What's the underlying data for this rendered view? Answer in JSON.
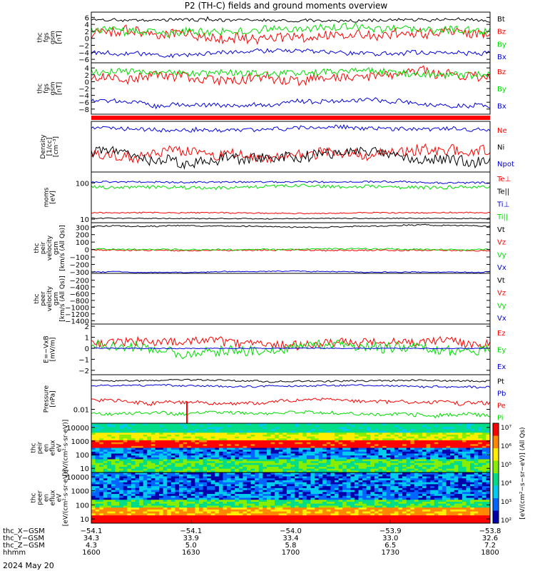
{
  "title": "P2 (TH-C) fields and ground moments overview",
  "date_label": "2024 May 20",
  "colors": {
    "black": "#000000",
    "red": "#ff0000",
    "green": "#00dd00",
    "blue": "#0000dd"
  },
  "chart_data": [
    {
      "type": "line",
      "ylabel_lines": [
        "thc",
        "fgs",
        "gsm",
        "[nT]"
      ],
      "ylim": [
        -7,
        7.5
      ],
      "yticks": [
        "6",
        "4",
        "2",
        "0",
        "−2",
        "−4",
        "−6"
      ],
      "ytick_values": [
        6,
        4,
        2,
        0,
        -2,
        -4,
        -6
      ],
      "series": [
        {
          "name": "Bt",
          "color": "#000000",
          "base": 5.2,
          "noise": 0.4,
          "drift": 0.6,
          "spike": 0.9
        },
        {
          "name": "Bz",
          "color": "#ff0000",
          "base": 0.5,
          "noise": 1.4,
          "drift": 1.6
        },
        {
          "name": "By",
          "color": "#00dd00",
          "base": 2.5,
          "noise": 1.1,
          "drift": 0.8
        },
        {
          "name": "Bx",
          "color": "#0000dd",
          "base": -4.2,
          "noise": 0.6,
          "drift": 1.0
        }
      ]
    },
    {
      "type": "line",
      "ylabel_lines": [
        "thc",
        "fgs",
        "gsm",
        "[nT]"
      ],
      "ylim": [
        -9.5,
        5.5
      ],
      "yticks": [
        "4",
        "2",
        "0",
        "−2",
        "−4",
        "−6",
        "−8"
      ],
      "ytick_values": [
        4,
        2,
        0,
        -2,
        -4,
        -6,
        -8
      ],
      "series": [
        {
          "name": "Bz",
          "color": "#ff0000",
          "base": 0.8,
          "noise": 1.4,
          "drift": 1.6
        },
        {
          "name": "By",
          "color": "#00dd00",
          "base": 2.5,
          "noise": 1.0,
          "drift": 0.7
        },
        {
          "name": "Bx",
          "color": "#0000dd",
          "base": -6.2,
          "noise": 0.6,
          "drift": 1.2
        }
      ]
    },
    {
      "type": "line",
      "ylabel_lines": [
        "Density",
        "[1/cc]",
        "[cm⁻³]"
      ],
      "ylim": [
        0,
        1
      ],
      "yticks": [],
      "ytick_values": [],
      "series": [
        {
          "name": "Ne",
          "color": "#ff0000",
          "base": 0.35,
          "noise": 0.1,
          "drift": 0.15
        },
        {
          "name": "Ni",
          "color": "#000000",
          "base": 0.3,
          "noise": 0.1,
          "drift": 0.15
        },
        {
          "name": "Npot",
          "color": "#0000dd",
          "base": 0.85,
          "noise": 0.04,
          "drift": 0.05
        }
      ]
    },
    {
      "type": "line",
      "ylabel_lines": [
        "moms",
        "[eV]"
      ],
      "ylim": [
        8,
        200
      ],
      "log": true,
      "yticks": [
        "100",
        "10"
      ],
      "ytick_values": [
        100,
        10
      ],
      "series": [
        {
          "name": "Te⊥",
          "color": "#ff0000",
          "base": 15,
          "noise": 0.6,
          "drift": 0.4
        },
        {
          "name": "Te||",
          "color": "#000000",
          "base": 10.5,
          "noise": 0.3,
          "drift": 0.2
        },
        {
          "name": "Ti⊥",
          "color": "#0000dd",
          "base": 105,
          "noise": 6,
          "drift": 4
        },
        {
          "name": "Ti||",
          "color": "#00dd00",
          "base": 78,
          "noise": 8,
          "drift": 6
        }
      ]
    },
    {
      "type": "line",
      "ylabel_lines": [
        "thc",
        "peir",
        "velocity",
        "gsm",
        "[km/s (All Qs)]"
      ],
      "ylim": [
        -320,
        360
      ],
      "yticks": [
        "300",
        "200",
        "100",
        "0",
        "−100",
        "−200",
        "−300"
      ],
      "ytick_values": [
        300,
        200,
        100,
        0,
        -100,
        -200,
        -300
      ],
      "series": [
        {
          "name": "Vt",
          "color": "#000000",
          "base": 310,
          "noise": 8,
          "drift": 15
        },
        {
          "name": "Vz",
          "color": "#ff0000",
          "base": -10,
          "noise": 10,
          "drift": 10
        },
        {
          "name": "Vy",
          "color": "#00dd00",
          "base": 0,
          "noise": 10,
          "drift": 10
        },
        {
          "name": "Vx",
          "color": "#0000dd",
          "base": -300,
          "noise": 6,
          "drift": 12
        }
      ]
    },
    {
      "type": "line",
      "ylabel_lines": [
        "thc",
        "peer",
        "velocity",
        "gsm",
        "[km/s (All Qs)]"
      ],
      "ylim": [
        -1500,
        0
      ],
      "yticks": [
        "−200",
        "−400",
        "−600",
        "−800",
        "−1000",
        "−1200",
        "−1400"
      ],
      "ytick_values": [
        -200,
        -400,
        -600,
        -800,
        -1000,
        -1200,
        -1400
      ],
      "series": [
        {
          "name": "Vt",
          "color": "#000000"
        },
        {
          "name": "Vz",
          "color": "#ff0000"
        },
        {
          "name": "Vy",
          "color": "#00dd00"
        },
        {
          "name": "Vx",
          "color": "#0000dd"
        }
      ]
    },
    {
      "type": "line",
      "ylabel_lines": [
        "E=−VxB",
        "[mV/m]"
      ],
      "ylim": [
        -2.4,
        2.2
      ],
      "yticks": [
        "2",
        "1",
        "0",
        "−1",
        "−2"
      ],
      "ytick_values": [
        2,
        1,
        0,
        -1,
        -2
      ],
      "series": [
        {
          "name": "Ez",
          "color": "#ff0000",
          "base": 0.4,
          "noise": 0.4,
          "drift": 0.4
        },
        {
          "name": "Ey",
          "color": "#00dd00",
          "base": 0,
          "noise": 0.45,
          "drift": 0.6
        },
        {
          "name": "Ex",
          "color": "#0000dd",
          "base": 0,
          "noise": 0.04,
          "drift": 0.02
        }
      ]
    },
    {
      "type": "line",
      "ylabel_lines": [
        "Pressure",
        "[nPa]"
      ],
      "ylim": [
        0.003,
        0.2
      ],
      "log": true,
      "yticks": [
        "0.01"
      ],
      "ytick_values": [
        0.01
      ],
      "series": [
        {
          "name": "Pt",
          "color": "#000000",
          "base": 0.12,
          "noise": 0.008,
          "drift": 0.01
        },
        {
          "name": "Pb",
          "color": "#0000dd",
          "base": 0.075,
          "noise": 0.006,
          "drift": 0.008
        },
        {
          "name": "Pe",
          "color": "#ff0000",
          "base": 0.02,
          "noise": 0.003,
          "drift": 0.005
        },
        {
          "name": "Pi",
          "color": "#00dd00",
          "base": 0.007,
          "noise": 0.001,
          "drift": 0.0015
        }
      ]
    },
    {
      "type": "heatmap",
      "ylabel_lines": [
        "thc",
        "peir",
        "en",
        "eflux",
        "eV",
        "[eV/(cm²·s·sr·eV)]"
      ],
      "ylim": [
        5,
        20000
      ],
      "log": true,
      "yticks": [
        "10000",
        "1000",
        "100",
        "10"
      ],
      "ytick_values": [
        10000,
        1000,
        100,
        10
      ]
    },
    {
      "type": "heatmap",
      "ylabel_lines": [
        "thc",
        "peer",
        "en",
        "eflux",
        "eV",
        "[eV/(cm²·s·sr·eV)]"
      ],
      "ylim": [
        5,
        20000
      ],
      "log": true,
      "yticks": [
        "10000",
        "1000",
        "100",
        "10"
      ],
      "ytick_values": [
        10000,
        1000,
        100,
        10
      ]
    }
  ],
  "colorbar": {
    "ticks": [
      "10⁷",
      "10⁶",
      "10⁵",
      "10⁴",
      "10³",
      "10²"
    ],
    "label": "[eV/(cm²−s−sr−eV)] (All Qs)"
  },
  "x_axis": {
    "rows": [
      {
        "name": "thc_X−GSM",
        "values": [
          "−54.1",
          "−54.1",
          "−54.0",
          "−53.9",
          "−53.8"
        ]
      },
      {
        "name": "thc_Y−GSM",
        "values": [
          "34.3",
          "33.9",
          "33.4",
          "33.0",
          "32.6"
        ]
      },
      {
        "name": "thc_Z−GSM",
        "values": [
          "4.3",
          "5.0",
          "5.8",
          "6.5",
          "7.2"
        ]
      },
      {
        "name": "hhmm",
        "values": [
          "1600",
          "1630",
          "1700",
          "1730",
          "1800"
        ]
      }
    ]
  }
}
